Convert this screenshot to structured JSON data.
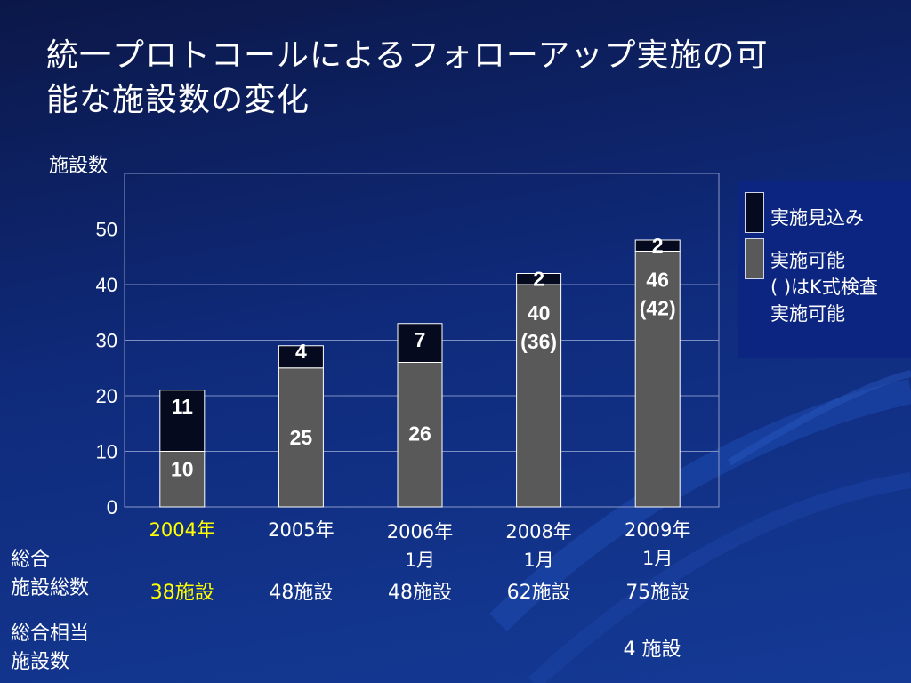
{
  "title": "統一プロトコールによるフォローアップ実施の可\n能な施設数の変化",
  "ylabel": "施設数",
  "colors": {
    "implemented": "#595959",
    "expected": "#050a1e",
    "highlight": "#ffff00",
    "text": "#ffffff"
  },
  "chart_data": {
    "type": "bar",
    "stacked": true,
    "categories": [
      "2004年",
      "2005年",
      "2006年\n1月",
      "2008年\n1月",
      "2009年\n1月"
    ],
    "series": [
      {
        "name": "実施可能",
        "values": [
          10,
          25,
          26,
          40,
          46
        ],
        "labels": [
          "10",
          "25",
          "26",
          "40\n(36)",
          "46\n(42)"
        ]
      },
      {
        "name": "実施見込み",
        "values": [
          11,
          4,
          7,
          2,
          2
        ],
        "labels": [
          "11",
          "4",
          "7",
          "2",
          "2"
        ]
      }
    ],
    "ylim": [
      0,
      60
    ],
    "yticks": [
      "0",
      "10",
      "20",
      "30",
      "40",
      "50"
    ],
    "grid": true,
    "legend": "right"
  },
  "legend": {
    "expected_label": "実施見込み",
    "implemented_label": "実施可能\n( )はK式検査\n実施可能"
  },
  "rows": {
    "total_label": "総合\n施設総数",
    "total_values": [
      "38施設",
      "48施設",
      "48施設",
      "62施設",
      "75施設"
    ],
    "equiv_label": "総合相当\n施設数",
    "equiv_value": "4 施設"
  }
}
